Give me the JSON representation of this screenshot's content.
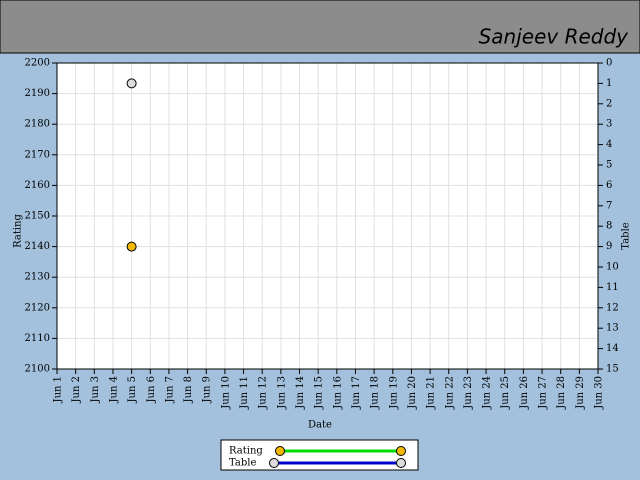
{
  "chart_data": {
    "type": "scatter",
    "title": "Sanjeev Reddy",
    "x_label": "Date",
    "y_label": "Rating",
    "y2_label": "Table",
    "categories": [
      "Jun 1",
      "Jun 2",
      "Jun 3",
      "Jun 4",
      "Jun 5",
      "Jun 6",
      "Jun 7",
      "Jun 8",
      "Jun 9",
      "Jun 10",
      "Jun 11",
      "Jun 12",
      "Jun 13",
      "Jun 14",
      "Jun 15",
      "Jun 16",
      "Jun 17",
      "Jun 18",
      "Jun 19",
      "Jun 20",
      "Jun 21",
      "Jun 22",
      "Jun 23",
      "Jun 24",
      "Jun 25",
      "Jun 26",
      "Jun 27",
      "Jun 28",
      "Jun 29",
      "Jun 30"
    ],
    "ylim": [
      2100,
      2200
    ],
    "yticks": [
      2100,
      2110,
      2120,
      2130,
      2140,
      2150,
      2160,
      2170,
      2180,
      2190,
      2200
    ],
    "y2lim": [
      15,
      0
    ],
    "y2ticks": [
      0,
      1,
      2,
      3,
      4,
      5,
      6,
      7,
      8,
      9,
      10,
      11,
      12,
      13,
      14,
      15
    ],
    "grid": true,
    "series": [
      {
        "name": "Rating",
        "color": "#f5b800",
        "line_color": "#00dd00",
        "values": [
          null,
          null,
          null,
          null,
          2140,
          null,
          null,
          null,
          null,
          null,
          null,
          null,
          null,
          null,
          null,
          null,
          null,
          null,
          null,
          null,
          null,
          null,
          null,
          null,
          null,
          null,
          null,
          null,
          null,
          null
        ]
      },
      {
        "name": "Table",
        "color": "#dcdcdc",
        "line_color": "#0000cc",
        "axis": "y2",
        "values": [
          null,
          null,
          null,
          null,
          1,
          null,
          null,
          null,
          null,
          null,
          null,
          null,
          null,
          null,
          null,
          null,
          null,
          null,
          null,
          null,
          null,
          null,
          null,
          null,
          null,
          null,
          null,
          null,
          null,
          null
        ]
      }
    ]
  }
}
